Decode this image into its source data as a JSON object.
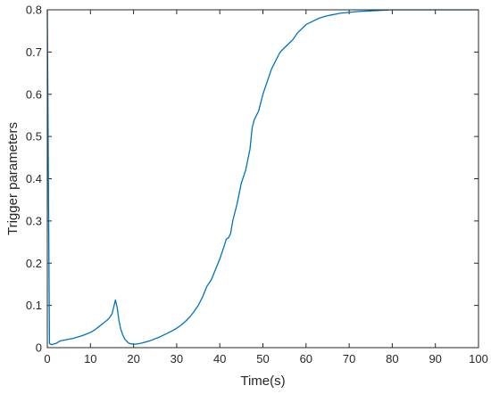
{
  "chart_data": {
    "type": "line",
    "title": "",
    "xlabel": "Time(s)",
    "ylabel": "Trigger parameters",
    "xlim": [
      0,
      100
    ],
    "ylim": [
      0,
      0.8
    ],
    "xticks": [
      0,
      10,
      20,
      30,
      40,
      50,
      60,
      70,
      80,
      90,
      100
    ],
    "yticks": [
      0,
      0.1,
      0.2,
      0.3,
      0.4,
      0.5,
      0.6,
      0.7,
      0.8
    ],
    "xtick_labels": [
      "0",
      "10",
      "20",
      "30",
      "40",
      "50",
      "60",
      "70",
      "80",
      "90",
      "100"
    ],
    "ytick_labels": [
      "0",
      "0.1",
      "0.2",
      "0.3",
      "0.4",
      "0.5",
      "0.6",
      "0.7",
      "0.8"
    ],
    "grid": false,
    "line_color": "#0072BD",
    "series": [
      {
        "x": [
          0,
          0.5,
          1,
          2,
          3,
          4,
          5,
          6,
          7,
          8,
          9,
          10,
          11,
          12,
          13,
          14,
          14.5,
          15,
          15.5,
          15.8,
          16.2,
          16.6,
          17,
          17.5,
          18,
          18.5,
          19,
          19.5,
          20,
          21,
          22,
          23,
          24,
          25,
          26,
          27,
          28,
          29,
          30,
          31,
          32,
          33,
          34,
          35,
          36,
          37,
          38,
          39,
          40,
          41,
          41.5,
          42,
          42.5,
          43,
          44,
          45,
          46,
          47,
          47.5,
          48,
          48.5,
          49,
          50,
          51,
          52,
          53,
          54,
          55,
          56,
          57,
          58,
          59,
          60,
          61,
          62,
          63,
          64,
          65,
          66,
          67,
          68,
          70,
          72,
          74,
          76,
          78,
          80,
          85,
          90,
          95,
          100
        ],
        "y": [
          0.8,
          0.01,
          0.007,
          0.01,
          0.016,
          0.018,
          0.02,
          0.022,
          0.025,
          0.028,
          0.032,
          0.036,
          0.042,
          0.05,
          0.058,
          0.066,
          0.072,
          0.08,
          0.1,
          0.113,
          0.095,
          0.065,
          0.045,
          0.03,
          0.02,
          0.014,
          0.01,
          0.009,
          0.008,
          0.009,
          0.011,
          0.014,
          0.017,
          0.021,
          0.025,
          0.03,
          0.035,
          0.04,
          0.046,
          0.053,
          0.062,
          0.072,
          0.085,
          0.1,
          0.12,
          0.145,
          0.16,
          0.185,
          0.21,
          0.24,
          0.257,
          0.26,
          0.27,
          0.3,
          0.34,
          0.39,
          0.42,
          0.47,
          0.52,
          0.54,
          0.55,
          0.56,
          0.6,
          0.63,
          0.66,
          0.68,
          0.7,
          0.71,
          0.72,
          0.73,
          0.745,
          0.755,
          0.765,
          0.77,
          0.775,
          0.78,
          0.783,
          0.786,
          0.788,
          0.79,
          0.792,
          0.794,
          0.796,
          0.797,
          0.798,
          0.799,
          0.8,
          0.8,
          0.8,
          0.8,
          0.8
        ]
      }
    ]
  }
}
